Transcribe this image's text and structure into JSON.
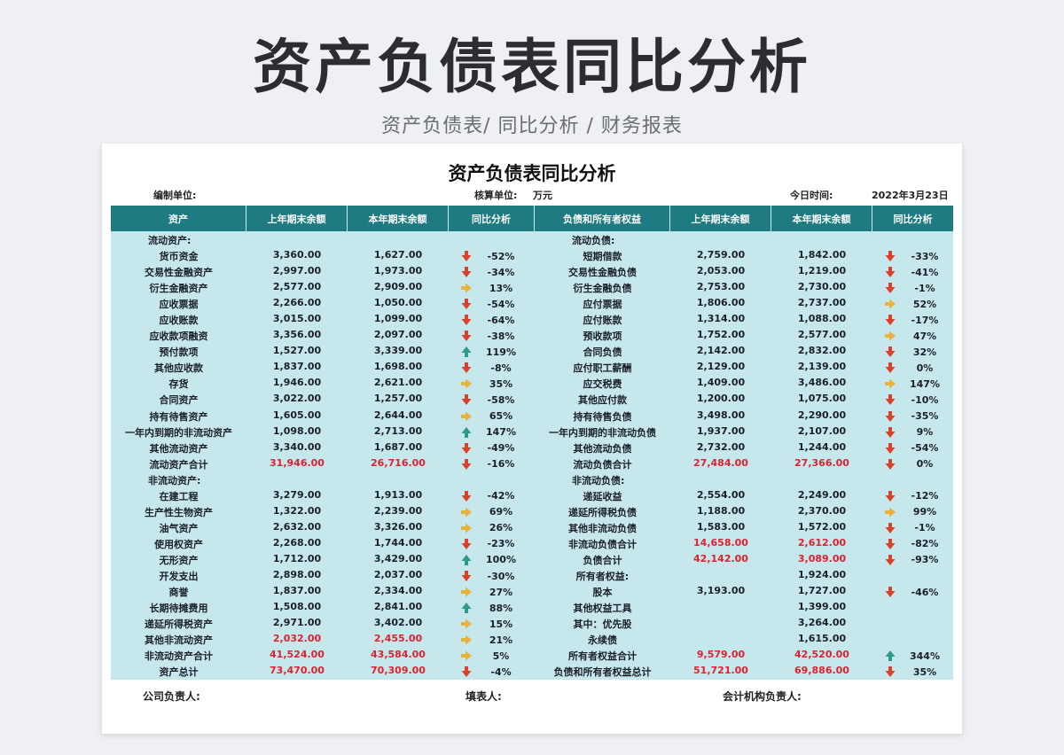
{
  "hero": {
    "title": "资产负债表同比分析",
    "subtitle": "资产负债表/ 同比分析 /  财务报表"
  },
  "document": {
    "title": "资产负债表同比分析",
    "prepared_by_label": "编制单位:",
    "unit_label": "核算单位:",
    "unit_value": "万元",
    "date_label": "今日时间:",
    "date_value": "2022年3月23日"
  },
  "colors": {
    "header_bg": "#1f7b82",
    "body_bg": "#c6e8ec",
    "highlight_red": "#e0202f",
    "icon_down": "#d9412b",
    "icon_flat": "#e8b33a",
    "icon_up": "#2e9a8a"
  },
  "headers": {
    "left": [
      "资产",
      "上年期末余额",
      "本年期末余额",
      "同比分析"
    ],
    "right": [
      "负债和所有者权益",
      "上年期末余额",
      "本年期末余额",
      "同比分析"
    ]
  },
  "rows": [
    {
      "l": {
        "name": "流动资产:",
        "section": true
      },
      "r": {
        "name": "流动负债:",
        "section": true
      }
    },
    {
      "l": {
        "name": "货币资金",
        "prev": "3,360.00",
        "curr": "1,627.00",
        "icon": "down",
        "pct": "-52%"
      },
      "r": {
        "name": "短期借款",
        "prev": "2,759.00",
        "curr": "1,842.00",
        "icon": "down",
        "pct": "-33%"
      }
    },
    {
      "l": {
        "name": "交易性金融资产",
        "prev": "2,997.00",
        "curr": "1,973.00",
        "icon": "down",
        "pct": "-34%"
      },
      "r": {
        "name": "交易性金融负债",
        "prev": "2,053.00",
        "curr": "1,219.00",
        "icon": "down",
        "pct": "-41%"
      }
    },
    {
      "l": {
        "name": "衍生金融资产",
        "prev": "2,577.00",
        "curr": "2,909.00",
        "icon": "flat",
        "pct": "13%"
      },
      "r": {
        "name": "衍生金融负债",
        "prev": "2,753.00",
        "curr": "2,730.00",
        "icon": "down",
        "pct": "-1%"
      }
    },
    {
      "l": {
        "name": "应收票据",
        "prev": "2,266.00",
        "curr": "1,050.00",
        "icon": "down",
        "pct": "-54%"
      },
      "r": {
        "name": "应付票据",
        "prev": "1,806.00",
        "curr": "2,737.00",
        "icon": "flat",
        "pct": "52%"
      }
    },
    {
      "l": {
        "name": "应收账款",
        "prev": "3,015.00",
        "curr": "1,099.00",
        "icon": "down",
        "pct": "-64%"
      },
      "r": {
        "name": "应付账款",
        "prev": "1,314.00",
        "curr": "1,088.00",
        "icon": "down",
        "pct": "-17%"
      }
    },
    {
      "l": {
        "name": "应收款项融资",
        "prev": "3,356.00",
        "curr": "2,097.00",
        "icon": "down",
        "pct": "-38%"
      },
      "r": {
        "name": "预收款项",
        "prev": "1,752.00",
        "curr": "2,577.00",
        "icon": "flat",
        "pct": "47%"
      }
    },
    {
      "l": {
        "name": "预付款项",
        "prev": "1,527.00",
        "curr": "3,339.00",
        "icon": "up",
        "pct": "119%"
      },
      "r": {
        "name": "合同负债",
        "prev": "2,142.00",
        "curr": "2,832.00",
        "icon": "down",
        "pct": "32%"
      }
    },
    {
      "l": {
        "name": "其他应收款",
        "prev": "1,837.00",
        "curr": "1,698.00",
        "icon": "down",
        "pct": "-8%"
      },
      "r": {
        "name": "应付职工薪酬",
        "prev": "2,129.00",
        "curr": "2,139.00",
        "icon": "down",
        "pct": "0%"
      }
    },
    {
      "l": {
        "name": "存货",
        "prev": "1,946.00",
        "curr": "2,621.00",
        "icon": "flat",
        "pct": "35%"
      },
      "r": {
        "name": "应交税费",
        "prev": "1,409.00",
        "curr": "3,486.00",
        "icon": "flat",
        "pct": "147%"
      }
    },
    {
      "l": {
        "name": "合同资产",
        "prev": "3,022.00",
        "curr": "1,257.00",
        "icon": "down",
        "pct": "-58%"
      },
      "r": {
        "name": "其他应付款",
        "prev": "1,200.00",
        "curr": "1,075.00",
        "icon": "down",
        "pct": "-10%"
      }
    },
    {
      "l": {
        "name": "持有待售资产",
        "prev": "1,605.00",
        "curr": "2,644.00",
        "icon": "flat",
        "pct": "65%"
      },
      "r": {
        "name": "持有待售负债",
        "prev": "3,498.00",
        "curr": "2,290.00",
        "icon": "down",
        "pct": "-35%"
      }
    },
    {
      "l": {
        "name": "一年内到期的非流动资产",
        "prev": "1,098.00",
        "curr": "2,713.00",
        "icon": "up",
        "pct": "147%"
      },
      "r": {
        "name": "一年内到期的非流动负债",
        "prev": "1,937.00",
        "curr": "2,107.00",
        "icon": "down",
        "pct": "9%"
      }
    },
    {
      "l": {
        "name": "其他流动资产",
        "prev": "3,340.00",
        "curr": "1,687.00",
        "icon": "down",
        "pct": "-49%"
      },
      "r": {
        "name": "其他流动负债",
        "prev": "2,732.00",
        "curr": "1,244.00",
        "icon": "down",
        "pct": "-54%"
      }
    },
    {
      "l": {
        "name": "流动资产合计",
        "prev": "31,946.00",
        "curr": "26,716.00",
        "icon": "down",
        "pct": "-16%",
        "red": true
      },
      "r": {
        "name": "流动负债合计",
        "prev": "27,484.00",
        "curr": "27,366.00",
        "icon": "down",
        "pct": "0%",
        "red": true
      }
    },
    {
      "l": {
        "name": "非流动资产:",
        "section": true
      },
      "r": {
        "name": "非流动负债:",
        "section": true
      }
    },
    {
      "l": {
        "name": "在建工程",
        "prev": "3,279.00",
        "curr": "1,913.00",
        "icon": "down",
        "pct": "-42%"
      },
      "r": {
        "name": "递延收益",
        "prev": "2,554.00",
        "curr": "2,249.00",
        "icon": "down",
        "pct": "-12%"
      }
    },
    {
      "l": {
        "name": "生产性生物资产",
        "prev": "1,322.00",
        "curr": "2,239.00",
        "icon": "flat",
        "pct": "69%"
      },
      "r": {
        "name": "递延所得税负债",
        "prev": "1,188.00",
        "curr": "2,370.00",
        "icon": "flat",
        "pct": "99%"
      }
    },
    {
      "l": {
        "name": "油气资产",
        "prev": "2,632.00",
        "curr": "3,326.00",
        "icon": "flat",
        "pct": "26%"
      },
      "r": {
        "name": "其他非流动负债",
        "prev": "1,583.00",
        "curr": "1,572.00",
        "icon": "down",
        "pct": "-1%"
      }
    },
    {
      "l": {
        "name": "使用权资产",
        "prev": "2,268.00",
        "curr": "1,744.00",
        "icon": "down",
        "pct": "-23%"
      },
      "r": {
        "name": "非流动负债合计",
        "prev": "14,658.00",
        "curr": "2,612.00",
        "icon": "down",
        "pct": "-82%",
        "red": true
      }
    },
    {
      "l": {
        "name": "无形资产",
        "prev": "1,712.00",
        "curr": "3,429.00",
        "icon": "up",
        "pct": "100%"
      },
      "r": {
        "name": "负债合计",
        "prev": "42,142.00",
        "curr": "3,089.00",
        "icon": "down",
        "pct": "-93%",
        "red": true
      }
    },
    {
      "l": {
        "name": "开发支出",
        "prev": "2,898.00",
        "curr": "2,037.00",
        "icon": "down",
        "pct": "-30%"
      },
      "r": {
        "name": "所有者权益:",
        "prev": "",
        "curr": "1,924.00",
        "icon": "",
        "pct": ""
      }
    },
    {
      "l": {
        "name": "商誉",
        "prev": "1,837.00",
        "curr": "2,334.00",
        "icon": "flat",
        "pct": "27%"
      },
      "r": {
        "name": "股本",
        "prev": "3,193.00",
        "curr": "1,727.00",
        "icon": "down",
        "pct": "-46%"
      }
    },
    {
      "l": {
        "name": "长期待摊费用",
        "prev": "1,508.00",
        "curr": "2,841.00",
        "icon": "up",
        "pct": "88%"
      },
      "r": {
        "name": "其他权益工具",
        "prev": "",
        "curr": "1,399.00",
        "icon": "",
        "pct": ""
      }
    },
    {
      "l": {
        "name": "递延所得税资产",
        "prev": "2,971.00",
        "curr": "3,402.00",
        "icon": "flat",
        "pct": "15%"
      },
      "r": {
        "name": "其中：优先股",
        "prev": "",
        "curr": "3,264.00",
        "icon": "",
        "pct": ""
      }
    },
    {
      "l": {
        "name": "其他非流动资产",
        "prev": "2,032.00",
        "curr": "2,455.00",
        "icon": "flat",
        "pct": "21%",
        "red": true
      },
      "r": {
        "name": "永续债",
        "prev": "",
        "curr": "1,615.00",
        "icon": "",
        "pct": ""
      }
    },
    {
      "l": {
        "name": "非流动资产合计",
        "prev": "41,524.00",
        "curr": "43,584.00",
        "icon": "flat",
        "pct": "5%",
        "red": true
      },
      "r": {
        "name": "所有者权益合计",
        "prev": "9,579.00",
        "curr": "42,520.00",
        "icon": "up",
        "pct": "344%",
        "red": true
      }
    },
    {
      "l": {
        "name": "资产总计",
        "prev": "73,470.00",
        "curr": "70,309.00",
        "icon": "down",
        "pct": "-4%",
        "red": true
      },
      "r": {
        "name": "负债和所有者权益总计",
        "prev": "51,721.00",
        "curr": "69,886.00",
        "icon": "down",
        "pct": "35%",
        "red": true
      }
    }
  ],
  "footer": {
    "company_head": "公司负责人:",
    "preparer": "填表人:",
    "accounting_head": "会计机构负责人:"
  }
}
